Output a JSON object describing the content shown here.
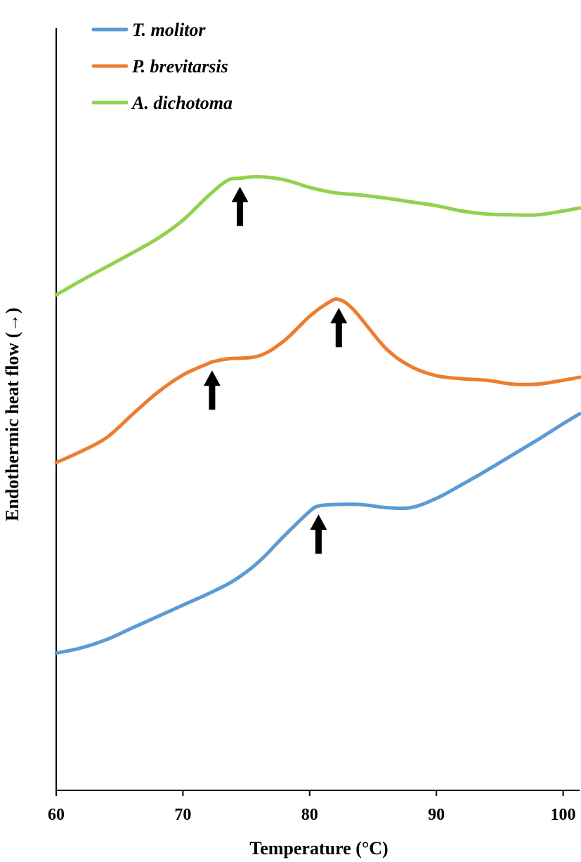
{
  "chart_data": {
    "type": "line",
    "xlabel": "Temperature (°C)",
    "ylabel": "Endothermic heat flow (→)",
    "xlim": [
      60,
      101.3
    ],
    "ylim": [
      0,
      100
    ],
    "x_ticks": [
      "60",
      "70",
      "80",
      "90",
      "100"
    ],
    "y_ticks_shown": false,
    "grid": false,
    "legend_position": "top-left",
    "series": [
      {
        "name": "T. molitor",
        "color": "#5B9BD5",
        "x": [
          60,
          62,
          64,
          66,
          68,
          70,
          72,
          74,
          76,
          78,
          80,
          80.7,
          82,
          84,
          86,
          88,
          90,
          92,
          94,
          96,
          98,
          100,
          101.3
        ],
        "y": [
          18,
          18.7,
          19.8,
          21.3,
          22.8,
          24.3,
          25.8,
          27.5,
          30.0,
          33.4,
          36.6,
          37.3,
          37.5,
          37.5,
          37.1,
          37.1,
          38.3,
          40.1,
          42.0,
          44.0,
          46.0,
          48.1,
          49.4
        ]
      },
      {
        "name": "P. brevitarsis",
        "color": "#ED7D31",
        "x": [
          60,
          62,
          64,
          66,
          68,
          70,
          72,
          72.3,
          73.5,
          76,
          78,
          80,
          81.5,
          82.3,
          83.5,
          86,
          88,
          90,
          92,
          94,
          96,
          98,
          100,
          101.3
        ],
        "y": [
          43.0,
          44.5,
          46.3,
          49.3,
          52.2,
          54.5,
          56.0,
          56.2,
          56.6,
          57.0,
          59.0,
          62.2,
          64.0,
          64.4,
          63.0,
          58.0,
          55.6,
          54.4,
          54.0,
          53.8,
          53.3,
          53.3,
          53.8,
          54.2
        ]
      },
      {
        "name": "A. dichotoma",
        "color": "#92D050",
        "x": [
          60,
          62,
          64,
          66,
          68,
          70,
          72,
          73.5,
          74.5,
          76,
          78,
          80,
          82,
          84,
          86,
          88,
          90,
          92,
          94,
          96,
          98,
          100,
          101.3
        ],
        "y": [
          65.0,
          66.9,
          68.7,
          70.5,
          72.4,
          74.8,
          78.0,
          80.0,
          80.3,
          80.5,
          80.1,
          79.1,
          78.4,
          78.1,
          77.7,
          77.2,
          76.7,
          76.0,
          75.6,
          75.5,
          75.5,
          76.0,
          76.4
        ]
      }
    ],
    "annotations": [
      {
        "type": "arrow",
        "direction": "up",
        "series": "T. molitor",
        "x": 80.7,
        "y": 37.3
      },
      {
        "type": "arrow",
        "direction": "up",
        "series": "P. brevitarsis",
        "x": 72.3,
        "y": 56.2
      },
      {
        "type": "arrow",
        "direction": "up",
        "series": "P. brevitarsis",
        "x": 82.3,
        "y": 64.4
      },
      {
        "type": "arrow",
        "direction": "up",
        "series": "A. dichotoma",
        "x": 74.5,
        "y": 80.3
      }
    ]
  }
}
